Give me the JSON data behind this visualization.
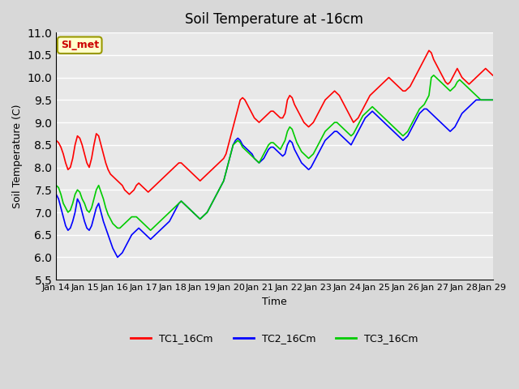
{
  "title": "Soil Temperature at -16cm",
  "xlabel": "Time",
  "ylabel": "Soil Temperature (C)",
  "ylim": [
    5.5,
    11.0
  ],
  "yticks": [
    5.5,
    6.0,
    6.5,
    7.0,
    7.5,
    8.0,
    8.5,
    9.0,
    9.5,
    10.0,
    10.5,
    11.0
  ],
  "x_labels": [
    "Jan 14",
    "Jan 15",
    "Jan 16",
    "Jan 17",
    "Jan 18",
    "Jan 19",
    "Jan 20",
    "Jan 21",
    "Jan 22",
    "Jan 23",
    "Jan 24",
    "Jan 25",
    "Jan 26",
    "Jan 27",
    "Jan 28",
    "Jan 29"
  ],
  "colors": {
    "TC1": "#ff0000",
    "TC2": "#0000ff",
    "TC3": "#00cc00"
  },
  "legend_labels": [
    "TC1_16Cm",
    "TC2_16Cm",
    "TC3_16Cm"
  ],
  "annotation_text": "SI_met",
  "annotation_color": "#cc0000",
  "annotation_bg": "#ffffcc",
  "annotation_edge": "#999900",
  "fig_bg": "#d8d8d8",
  "ax_bg": "#e8e8e8",
  "grid_color": "#ffffff",
  "linewidth": 1.2,
  "TC1_data": [
    8.6,
    8.55,
    8.45,
    8.3,
    8.1,
    7.95,
    8.0,
    8.2,
    8.5,
    8.7,
    8.65,
    8.5,
    8.3,
    8.1,
    8.0,
    8.2,
    8.5,
    8.75,
    8.7,
    8.5,
    8.3,
    8.1,
    7.95,
    7.85,
    7.8,
    7.75,
    7.7,
    7.65,
    7.6,
    7.5,
    7.45,
    7.4,
    7.45,
    7.5,
    7.6,
    7.65,
    7.6,
    7.55,
    7.5,
    7.45,
    7.5,
    7.55,
    7.6,
    7.65,
    7.7,
    7.75,
    7.8,
    7.85,
    7.9,
    7.95,
    8.0,
    8.05,
    8.1,
    8.1,
    8.05,
    8.0,
    7.95,
    7.9,
    7.85,
    7.8,
    7.75,
    7.7,
    7.75,
    7.8,
    7.85,
    7.9,
    7.95,
    8.0,
    8.05,
    8.1,
    8.15,
    8.2,
    8.3,
    8.5,
    8.7,
    8.9,
    9.1,
    9.3,
    9.5,
    9.55,
    9.5,
    9.4,
    9.3,
    9.2,
    9.1,
    9.05,
    9.0,
    9.05,
    9.1,
    9.15,
    9.2,
    9.25,
    9.25,
    9.2,
    9.15,
    9.1,
    9.1,
    9.2,
    9.5,
    9.6,
    9.55,
    9.4,
    9.3,
    9.2,
    9.1,
    9.0,
    8.95,
    8.9,
    8.95,
    9.0,
    9.1,
    9.2,
    9.3,
    9.4,
    9.5,
    9.55,
    9.6,
    9.65,
    9.7,
    9.65,
    9.6,
    9.5,
    9.4,
    9.3,
    9.2,
    9.1,
    9.0,
    9.05,
    9.1,
    9.2,
    9.3,
    9.4,
    9.5,
    9.6,
    9.65,
    9.7,
    9.75,
    9.8,
    9.85,
    9.9,
    9.95,
    10.0,
    9.95,
    9.9,
    9.85,
    9.8,
    9.75,
    9.7,
    9.7,
    9.75,
    9.8,
    9.9,
    10.0,
    10.1,
    10.2,
    10.3,
    10.4,
    10.5,
    10.6,
    10.55,
    10.4,
    10.3,
    10.2,
    10.1,
    10.0,
    9.9,
    9.85,
    9.9,
    10.0,
    10.1,
    10.2,
    10.1,
    10.0,
    9.95,
    9.9,
    9.85,
    9.9,
    9.95,
    10.0,
    10.05,
    10.1,
    10.15,
    10.2,
    10.15,
    10.1,
    10.05
  ],
  "TC2_data": [
    7.4,
    7.3,
    7.1,
    6.9,
    6.7,
    6.6,
    6.65,
    6.8,
    7.0,
    7.3,
    7.2,
    7.0,
    6.8,
    6.65,
    6.6,
    6.7,
    6.9,
    7.1,
    7.2,
    7.0,
    6.8,
    6.65,
    6.5,
    6.35,
    6.2,
    6.1,
    6.0,
    6.05,
    6.1,
    6.2,
    6.3,
    6.4,
    6.5,
    6.55,
    6.6,
    6.65,
    6.6,
    6.55,
    6.5,
    6.45,
    6.4,
    6.45,
    6.5,
    6.55,
    6.6,
    6.65,
    6.7,
    6.75,
    6.8,
    6.9,
    7.0,
    7.1,
    7.2,
    7.25,
    7.2,
    7.15,
    7.1,
    7.05,
    7.0,
    6.95,
    6.9,
    6.85,
    6.9,
    6.95,
    7.0,
    7.1,
    7.2,
    7.3,
    7.4,
    7.5,
    7.6,
    7.7,
    7.9,
    8.1,
    8.3,
    8.5,
    8.6,
    8.65,
    8.6,
    8.5,
    8.45,
    8.4,
    8.35,
    8.3,
    8.2,
    8.15,
    8.1,
    8.15,
    8.2,
    8.3,
    8.4,
    8.45,
    8.45,
    8.4,
    8.35,
    8.3,
    8.25,
    8.3,
    8.5,
    8.6,
    8.55,
    8.4,
    8.3,
    8.2,
    8.1,
    8.05,
    8.0,
    7.95,
    8.0,
    8.1,
    8.2,
    8.3,
    8.4,
    8.5,
    8.6,
    8.65,
    8.7,
    8.75,
    8.8,
    8.8,
    8.75,
    8.7,
    8.65,
    8.6,
    8.55,
    8.5,
    8.6,
    8.7,
    8.8,
    8.9,
    9.0,
    9.1,
    9.15,
    9.2,
    9.25,
    9.2,
    9.15,
    9.1,
    9.05,
    9.0,
    8.95,
    8.9,
    8.85,
    8.8,
    8.75,
    8.7,
    8.65,
    8.6,
    8.65,
    8.7,
    8.8,
    8.9,
    9.0,
    9.1,
    9.2,
    9.25,
    9.3,
    9.3,
    9.25,
    9.2,
    9.15,
    9.1,
    9.05,
    9.0,
    8.95,
    8.9,
    8.85,
    8.8,
    8.85,
    8.9,
    9.0,
    9.1,
    9.2,
    9.25,
    9.3,
    9.35,
    9.4,
    9.45,
    9.5,
    9.5,
    9.5,
    9.5,
    9.5,
    9.5,
    9.5,
    9.5
  ],
  "TC3_data": [
    7.6,
    7.55,
    7.4,
    7.2,
    7.1,
    7.0,
    7.05,
    7.2,
    7.4,
    7.5,
    7.45,
    7.3,
    7.2,
    7.05,
    7.0,
    7.1,
    7.3,
    7.5,
    7.6,
    7.45,
    7.3,
    7.1,
    6.95,
    6.85,
    6.75,
    6.7,
    6.65,
    6.65,
    6.7,
    6.75,
    6.8,
    6.85,
    6.9,
    6.9,
    6.9,
    6.85,
    6.8,
    6.75,
    6.7,
    6.65,
    6.6,
    6.65,
    6.7,
    6.75,
    6.8,
    6.85,
    6.9,
    6.95,
    7.0,
    7.05,
    7.1,
    7.15,
    7.2,
    7.25,
    7.2,
    7.15,
    7.1,
    7.05,
    7.0,
    6.95,
    6.9,
    6.85,
    6.9,
    6.95,
    7.0,
    7.1,
    7.2,
    7.3,
    7.4,
    7.5,
    7.6,
    7.7,
    7.9,
    8.1,
    8.3,
    8.5,
    8.55,
    8.6,
    8.55,
    8.45,
    8.4,
    8.35,
    8.3,
    8.25,
    8.2,
    8.15,
    8.1,
    8.2,
    8.3,
    8.4,
    8.5,
    8.55,
    8.55,
    8.5,
    8.45,
    8.4,
    8.5,
    8.6,
    8.8,
    8.9,
    8.85,
    8.7,
    8.55,
    8.45,
    8.35,
    8.3,
    8.25,
    8.2,
    8.25,
    8.3,
    8.4,
    8.5,
    8.6,
    8.7,
    8.8,
    8.85,
    8.9,
    8.95,
    9.0,
    9.0,
    8.95,
    8.9,
    8.85,
    8.8,
    8.75,
    8.7,
    8.75,
    8.85,
    8.95,
    9.05,
    9.15,
    9.2,
    9.25,
    9.3,
    9.35,
    9.3,
    9.25,
    9.2,
    9.15,
    9.1,
    9.05,
    9.0,
    8.95,
    8.9,
    8.85,
    8.8,
    8.75,
    8.7,
    8.75,
    8.8,
    8.9,
    9.0,
    9.1,
    9.2,
    9.3,
    9.35,
    9.4,
    9.5,
    9.6,
    10.0,
    10.05,
    10.0,
    9.95,
    9.9,
    9.85,
    9.8,
    9.75,
    9.7,
    9.75,
    9.8,
    9.9,
    9.95,
    9.9,
    9.85,
    9.8,
    9.75,
    9.7,
    9.65,
    9.6,
    9.55,
    9.5,
    9.5,
    9.5,
    9.5,
    9.5,
    9.5
  ]
}
